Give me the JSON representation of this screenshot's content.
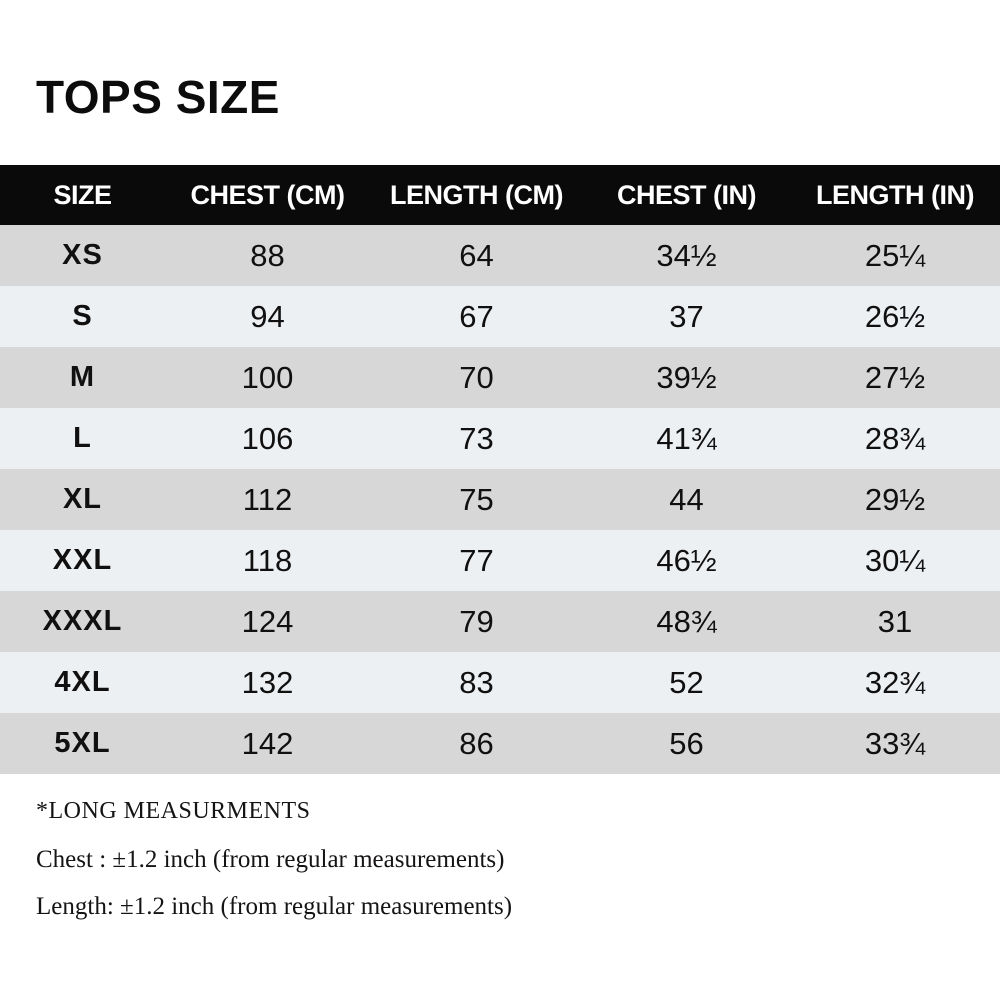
{
  "title": "TOPS SIZE",
  "chart_data": {
    "type": "table",
    "title": "TOPS SIZE",
    "columns": [
      "SIZE",
      "CHEST (CM)",
      "LENGTH (CM)",
      "CHEST (IN)",
      "LENGTH (IN)"
    ],
    "rows": [
      [
        "XS",
        "88",
        "64",
        "34½",
        "25¼"
      ],
      [
        "S",
        "94",
        "67",
        "37",
        "26½"
      ],
      [
        "M",
        "100",
        "70",
        "39½",
        "27½"
      ],
      [
        "L",
        "106",
        "73",
        "41¾",
        "28¾"
      ],
      [
        "XL",
        "112",
        "75",
        "44",
        "29½"
      ],
      [
        "XXL",
        "118",
        "77",
        "46½",
        "30¼"
      ],
      [
        "XXXL",
        "124",
        "79",
        "48¾",
        "31"
      ],
      [
        "4XL",
        "132",
        "83",
        "52",
        "32¾"
      ],
      [
        "5XL",
        "142",
        "86",
        "56",
        "33¾"
      ]
    ],
    "layout": {
      "header_style": "black bar, white bold text",
      "row_striping": "alternating gray starting dark",
      "grid": false
    }
  },
  "notes": [
    "*LONG MEASURMENTS",
    "Chest : ±1.2 inch (from regular measurements)",
    "Length: ±1.2 inch (from regular measurements)"
  ],
  "colors": {
    "header_bg": "#0b0a0b",
    "header_text": "#ffffff",
    "row_dark": "#d7d7d7",
    "row_light": "#edf0f2",
    "text": "#111011",
    "page_bg": "#ffffff"
  }
}
